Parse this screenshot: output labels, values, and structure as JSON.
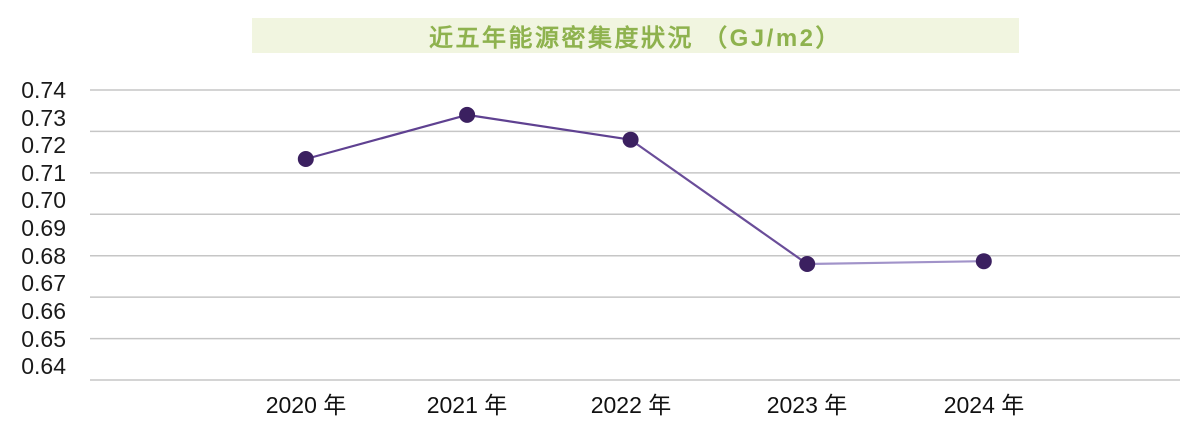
{
  "title": {
    "text": "近五年能源密集度狀況 （GJ/m2）",
    "banner_bg": "#f1f5e0",
    "text_color": "#8eb24e"
  },
  "chart_data": {
    "type": "line",
    "title": "近五年能源密集度狀況 （GJ/m2）",
    "categories": [
      "2020 年",
      "2021 年",
      "2022 年",
      "2023 年",
      "2024 年"
    ],
    "values": [
      0.715,
      0.731,
      0.722,
      0.677,
      0.678
    ],
    "series": [
      {
        "name": "能源密集度",
        "values": [
          0.715,
          0.731,
          0.722,
          0.677,
          0.678
        ]
      }
    ],
    "xlabel": "",
    "ylabel": "",
    "unit": "GJ/m2",
    "ylim": [
      0.635,
      0.74
    ],
    "y_tick_labels": [
      "0.74",
      "0.73",
      "0.72",
      "0.71",
      "0.70",
      "0.69",
      "0.68",
      "0.67",
      "0.66",
      "0.65",
      "0.64"
    ],
    "gridlines_at": [
      0.74,
      0.725,
      0.71,
      0.695,
      0.68,
      0.665,
      0.65,
      0.635
    ],
    "grid": true,
    "legend": "none",
    "grid_color": "#c6c6c6",
    "marker_color": "#3b2060",
    "segment_colors": [
      "#5f4191",
      "#5f4191",
      "#6a4d99",
      "#a193c9"
    ]
  }
}
